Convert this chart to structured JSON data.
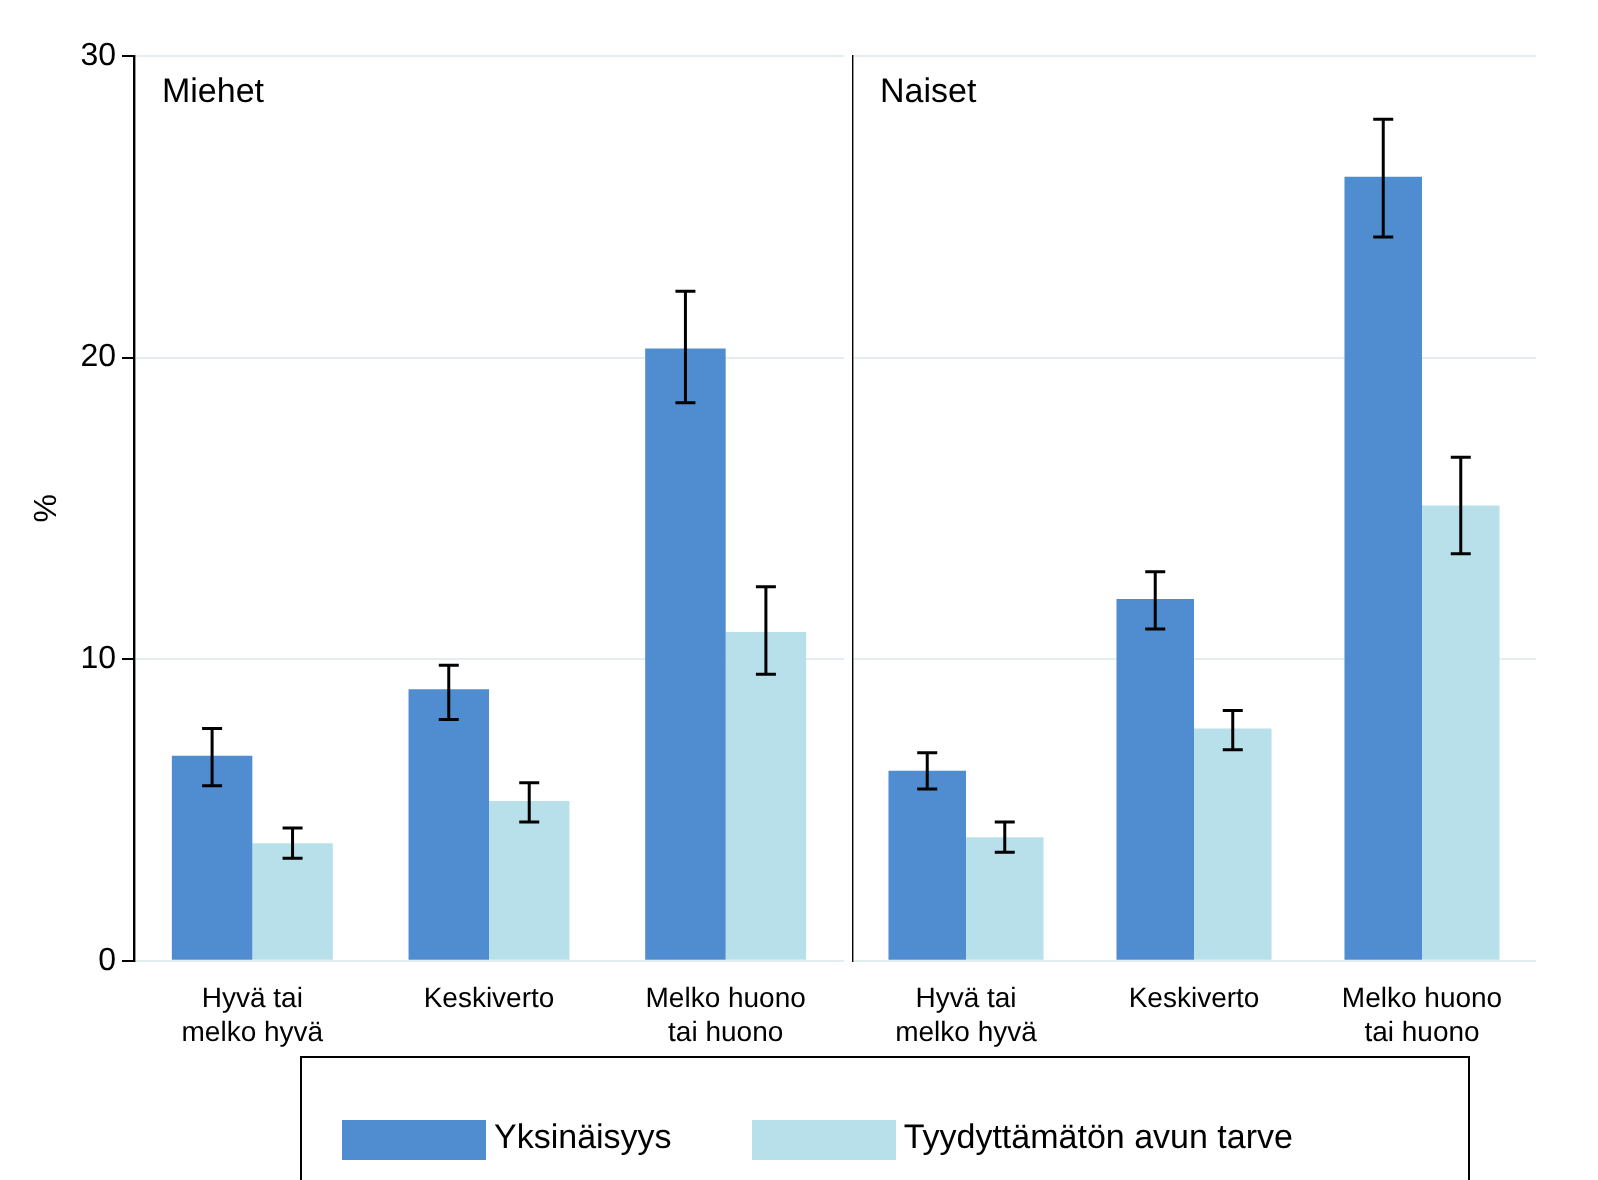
{
  "chart_data": [
    {
      "type": "bar",
      "title": "Miehet",
      "ylabel": "%",
      "categories": [
        "Hyvä tai melko hyvä",
        "Keskiverto",
        "Melko huono tai huono"
      ],
      "series": [
        {
          "name": "Yksinäisyys",
          "color": "#4f8dd0",
          "values": [
            6.8,
            9.0,
            20.3
          ],
          "errors": [
            [
              5.8,
              7.7
            ],
            [
              8.0,
              9.8
            ],
            [
              18.5,
              22.2
            ]
          ]
        },
        {
          "name": "Tyydyttämätön avun tarve",
          "color": "#b8e0ea",
          "values": [
            3.9,
            5.3,
            10.9
          ],
          "errors": [
            [
              3.4,
              4.4
            ],
            [
              4.6,
              5.9
            ],
            [
              9.5,
              12.4
            ]
          ]
        }
      ],
      "ylim": [
        0,
        30
      ],
      "yticks": [
        0,
        10,
        20,
        30
      ],
      "grid": "y",
      "legend": "bottom"
    },
    {
      "type": "bar",
      "title": "Naiset",
      "categories": [
        "Hyvä tai melko hyvä",
        "Keskiverto",
        "Melko huono tai huono"
      ],
      "series": [
        {
          "color": "#4f8dd0",
          "values": [
            6.3,
            12.0,
            26.0
          ],
          "errors": [
            [
              5.7,
              6.9
            ],
            [
              11.0,
              12.9
            ],
            [
              24.0,
              27.9
            ]
          ]
        },
        {
          "color": "#b8e0ea",
          "values": [
            4.1,
            7.7,
            15.1
          ],
          "errors": [
            [
              3.6,
              4.6
            ],
            [
              7.0,
              8.3
            ],
            [
              13.5,
              16.7
            ]
          ]
        }
      ],
      "ylim": [
        0,
        30
      ],
      "yticks": [
        0,
        10,
        20,
        30
      ],
      "grid": "y",
      "tick_labels": "x"
    }
  ]
}
